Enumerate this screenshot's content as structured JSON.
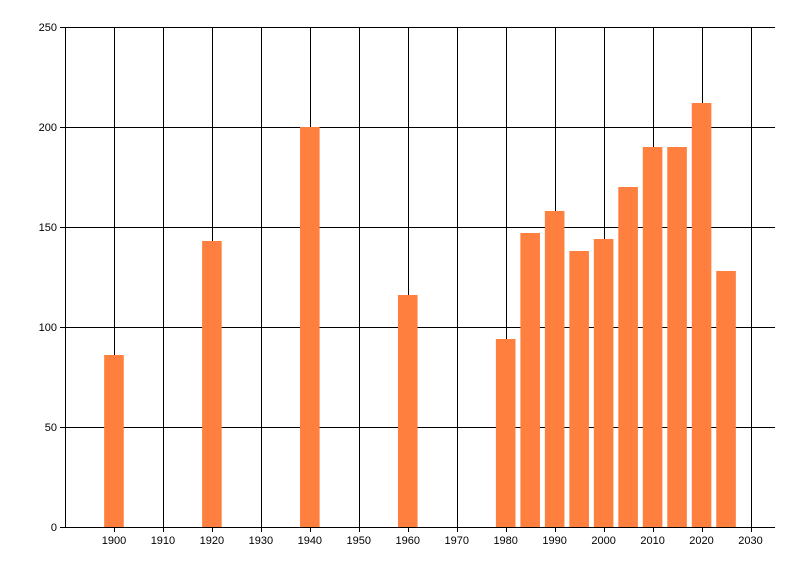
{
  "chart_data": {
    "type": "bar",
    "title": "",
    "xlabel": "",
    "ylabel": "",
    "x": [
      1900,
      1920,
      1940,
      1960,
      1980,
      1985,
      1990,
      1995,
      2000,
      2005,
      2010,
      2015,
      2020,
      2025
    ],
    "values": [
      86,
      143,
      200,
      116,
      94,
      147,
      158,
      138,
      144,
      170,
      190,
      190,
      212,
      128
    ],
    "xlim": [
      1890,
      2035
    ],
    "ylim": [
      0,
      250
    ],
    "x_ticks": [
      1900,
      1910,
      1920,
      1930,
      1940,
      1950,
      1960,
      1970,
      1980,
      1990,
      2000,
      2010,
      2020,
      2030
    ],
    "y_ticks": [
      0,
      50,
      100,
      150,
      200,
      250
    ],
    "bar_width_years": 4,
    "bar_color": "#FF7F3F",
    "grid": true,
    "legend": "none"
  }
}
